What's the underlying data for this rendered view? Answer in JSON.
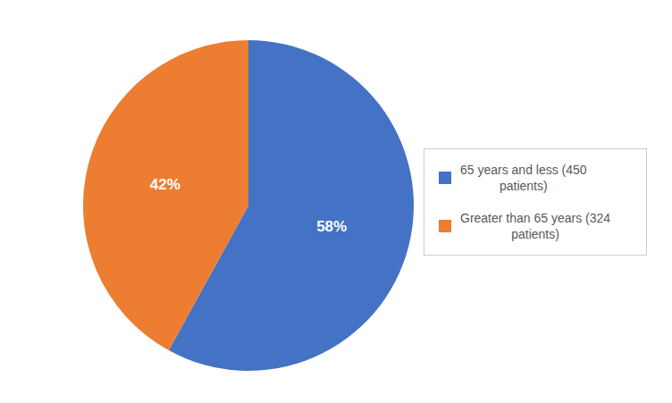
{
  "chart_data": {
    "type": "pie",
    "categories": [
      "65 years and less (450\npatients)",
      "Greater than 65 years (324\npatients)"
    ],
    "values": [
      58,
      42
    ],
    "value_labels": [
      "58%",
      "42%"
    ],
    "colors": [
      "#4472C4",
      "#ED7D31"
    ],
    "data_labels": true,
    "legend": "right"
  }
}
